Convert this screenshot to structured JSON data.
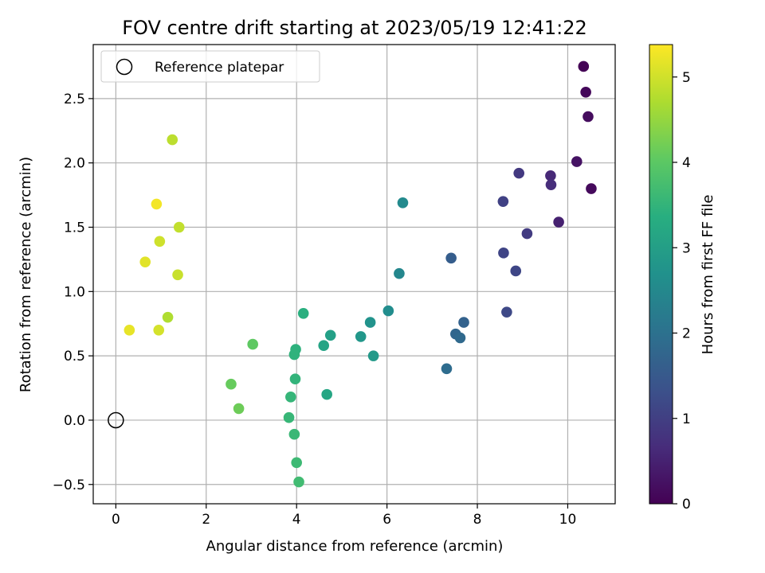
{
  "chart_data": {
    "type": "scatter",
    "title": "FOV centre drift starting at 2023/05/19 12:41:22",
    "xlabel": "Angular distance from reference (arcmin)",
    "ylabel": "Rotation from reference (arcmin)",
    "xlim": [
      -0.5,
      11.05
    ],
    "ylim": [
      -0.65,
      2.92
    ],
    "xticks": [
      0,
      2,
      4,
      6,
      8,
      10
    ],
    "yticks": [
      -0.5,
      0.0,
      0.5,
      1.0,
      1.5,
      2.0,
      2.5
    ],
    "xtick_labels": [
      "0",
      "2",
      "4",
      "6",
      "8",
      "10"
    ],
    "ytick_labels": [
      "−0.5",
      "0.0",
      "0.5",
      "1.0",
      "1.5",
      "2.0",
      "2.5"
    ],
    "grid": true,
    "legend": {
      "position": "top-left",
      "entries": [
        "Reference platepar"
      ]
    },
    "reference_point": {
      "x": 0.0,
      "y": 0.0,
      "label": "Reference platepar"
    },
    "colorbar": {
      "label": "Hours from first FF file",
      "colormap": "viridis",
      "range": [
        0,
        5.38
      ],
      "ticks": [
        0,
        1,
        2,
        3,
        4,
        5
      ],
      "tick_labels": [
        "0",
        "1",
        "2",
        "3",
        "4",
        "5"
      ]
    },
    "points": [
      {
        "x": 10.35,
        "y": 2.75,
        "c": 0.02
      },
      {
        "x": 10.4,
        "y": 2.55,
        "c": 0.1
      },
      {
        "x": 10.45,
        "y": 2.36,
        "c": 0.18
      },
      {
        "x": 10.2,
        "y": 2.01,
        "c": 0.26
      },
      {
        "x": 10.52,
        "y": 1.8,
        "c": 0.14
      },
      {
        "x": 9.8,
        "y": 1.54,
        "c": 0.5
      },
      {
        "x": 9.62,
        "y": 1.9,
        "c": 0.62
      },
      {
        "x": 9.63,
        "y": 1.83,
        "c": 0.7
      },
      {
        "x": 8.92,
        "y": 1.92,
        "c": 0.9
      },
      {
        "x": 9.1,
        "y": 1.45,
        "c": 0.95
      },
      {
        "x": 8.57,
        "y": 1.7,
        "c": 1.05
      },
      {
        "x": 8.58,
        "y": 1.3,
        "c": 1.1
      },
      {
        "x": 8.85,
        "y": 1.16,
        "c": 1.15
      },
      {
        "x": 8.65,
        "y": 0.84,
        "c": 1.2
      },
      {
        "x": 7.42,
        "y": 1.26,
        "c": 1.6
      },
      {
        "x": 7.7,
        "y": 0.76,
        "c": 1.7
      },
      {
        "x": 7.52,
        "y": 0.67,
        "c": 1.78
      },
      {
        "x": 7.62,
        "y": 0.64,
        "c": 1.85
      },
      {
        "x": 7.32,
        "y": 0.4,
        "c": 1.92
      },
      {
        "x": 6.35,
        "y": 1.69,
        "c": 2.55
      },
      {
        "x": 6.27,
        "y": 1.14,
        "c": 2.5
      },
      {
        "x": 6.03,
        "y": 0.85,
        "c": 2.62
      },
      {
        "x": 5.63,
        "y": 0.76,
        "c": 2.75
      },
      {
        "x": 5.42,
        "y": 0.65,
        "c": 2.85
      },
      {
        "x": 5.7,
        "y": 0.5,
        "c": 2.9
      },
      {
        "x": 4.75,
        "y": 0.66,
        "c": 3.05
      },
      {
        "x": 4.6,
        "y": 0.58,
        "c": 3.15
      },
      {
        "x": 4.67,
        "y": 0.2,
        "c": 3.2
      },
      {
        "x": 4.15,
        "y": 0.83,
        "c": 3.4
      },
      {
        "x": 3.98,
        "y": 0.55,
        "c": 3.45
      },
      {
        "x": 3.95,
        "y": 0.51,
        "c": 3.48
      },
      {
        "x": 3.97,
        "y": 0.32,
        "c": 3.52
      },
      {
        "x": 3.87,
        "y": 0.18,
        "c": 3.55
      },
      {
        "x": 3.83,
        "y": 0.02,
        "c": 3.58
      },
      {
        "x": 3.95,
        "y": -0.11,
        "c": 3.62
      },
      {
        "x": 4.0,
        "y": -0.33,
        "c": 3.66
      },
      {
        "x": 4.05,
        "y": -0.48,
        "c": 3.7
      },
      {
        "x": 3.03,
        "y": 0.59,
        "c": 4.05
      },
      {
        "x": 2.55,
        "y": 0.28,
        "c": 4.12
      },
      {
        "x": 2.72,
        "y": 0.09,
        "c": 4.18
      },
      {
        "x": 1.25,
        "y": 2.18,
        "c": 4.85
      },
      {
        "x": 0.9,
        "y": 1.68,
        "c": 5.3
      },
      {
        "x": 1.4,
        "y": 1.5,
        "c": 4.9
      },
      {
        "x": 0.97,
        "y": 1.39,
        "c": 5.0
      },
      {
        "x": 0.65,
        "y": 1.23,
        "c": 5.15
      },
      {
        "x": 1.37,
        "y": 1.13,
        "c": 4.95
      },
      {
        "x": 1.15,
        "y": 0.8,
        "c": 4.75
      },
      {
        "x": 0.3,
        "y": 0.7,
        "c": 5.2
      },
      {
        "x": 0.95,
        "y": 0.7,
        "c": 5.05
      }
    ]
  }
}
